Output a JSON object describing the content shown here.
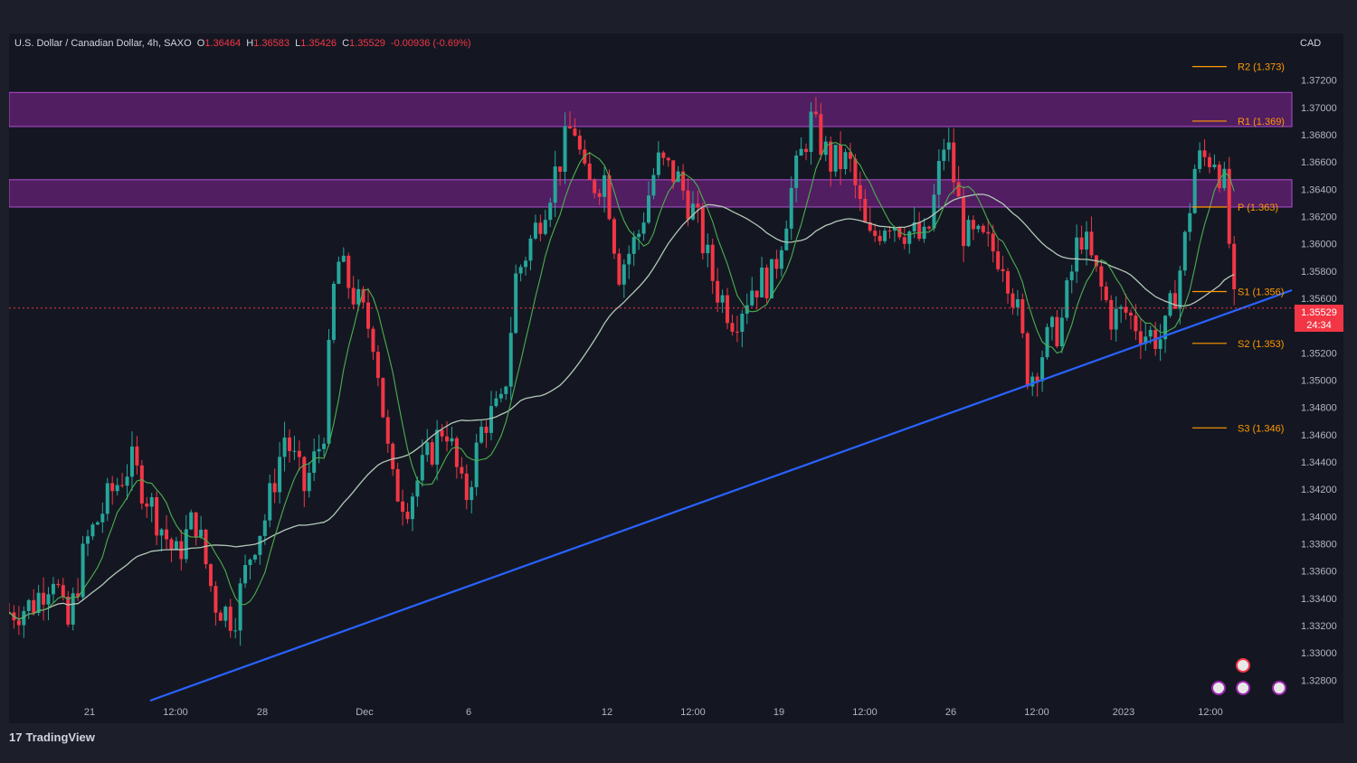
{
  "header": {
    "symbol": "U.S. Dollar / Canadian Dollar, 4h, SAXO",
    "open_label": "O",
    "open": "1.36464",
    "high_label": "H",
    "high": "1.36583",
    "low_label": "L",
    "low": "1.35426",
    "close_label": "C",
    "close": "1.35529",
    "change": "-0.00936 (-0.69%)"
  },
  "currency": "CAD",
  "last_price": {
    "value": "1.35529",
    "countdown": "24:34"
  },
  "brand": "TradingView",
  "chart_data": {
    "type": "candlestick",
    "ylim": [
      1.3265,
      1.3745
    ],
    "y_ticks": [
      "1.37200",
      "1.37000",
      "1.36800",
      "1.36600",
      "1.36400",
      "1.36200",
      "1.36000",
      "1.35800",
      "1.35600",
      "1.35400",
      "1.35200",
      "1.35000",
      "1.34800",
      "1.34600",
      "1.34400",
      "1.34200",
      "1.34000",
      "1.33800",
      "1.33600",
      "1.33400",
      "1.33200",
      "1.33000",
      "1.32800"
    ],
    "x_ticks": [
      "21",
      "12:00",
      "28",
      "Dec",
      "6",
      "12",
      "12:00",
      "19",
      "12:00",
      "26",
      "12:00",
      "2023",
      "12:00"
    ],
    "colors": {
      "up": "#26a69a",
      "down": "#f23645",
      "trend": "#2962ff",
      "ema_fast": "#4caf50",
      "ema_slow": "#b2c8b8",
      "zone": "#9c27b0",
      "pivot": "#ff9800"
    },
    "pivots": [
      {
        "label": "R2 (1.373)",
        "value": 1.373
      },
      {
        "label": "R1 (1.369)",
        "value": 1.369
      },
      {
        "label": "P (1.363)",
        "value": 1.3627
      },
      {
        "label": "S1 (1.356)",
        "value": 1.3565
      },
      {
        "label": "S2 (1.353)",
        "value": 1.3527
      },
      {
        "label": "S3 (1.346)",
        "value": 1.3465
      }
    ],
    "zones": [
      {
        "from": 1.3686,
        "to": 1.3711
      },
      {
        "from": 1.3627,
        "to": 1.3647
      }
    ],
    "trendline": {
      "start": [
        0.11,
        1.3265
      ],
      "end": [
        1.0,
        1.3566
      ]
    },
    "anchors": [
      [
        0.0,
        1.333
      ],
      [
        0.018,
        1.3335
      ],
      [
        0.035,
        1.336
      ],
      [
        0.045,
        1.3315
      ],
      [
        0.06,
        1.338
      ],
      [
        0.08,
        1.3418
      ],
      [
        0.095,
        1.344
      ],
      [
        0.115,
        1.34
      ],
      [
        0.13,
        1.337
      ],
      [
        0.145,
        1.34
      ],
      [
        0.16,
        1.3338
      ],
      [
        0.175,
        1.3325
      ],
      [
        0.19,
        1.338
      ],
      [
        0.2,
        1.34
      ],
      [
        0.215,
        1.346
      ],
      [
        0.23,
        1.342
      ],
      [
        0.245,
        1.346
      ],
      [
        0.255,
        1.359
      ],
      [
        0.265,
        1.357
      ],
      [
        0.285,
        1.353
      ],
      [
        0.298,
        1.3425
      ],
      [
        0.31,
        1.341
      ],
      [
        0.325,
        1.344
      ],
      [
        0.34,
        1.347
      ],
      [
        0.355,
        1.341
      ],
      [
        0.37,
        1.347
      ],
      [
        0.385,
        1.348
      ],
      [
        0.395,
        1.3575
      ],
      [
        0.41,
        1.361
      ],
      [
        0.425,
        1.365
      ],
      [
        0.44,
        1.369
      ],
      [
        0.45,
        1.364
      ],
      [
        0.465,
        1.365
      ],
      [
        0.475,
        1.358
      ],
      [
        0.49,
        1.3605
      ],
      [
        0.505,
        1.366
      ],
      [
        0.52,
        1.365
      ],
      [
        0.535,
        1.362
      ],
      [
        0.55,
        1.357
      ],
      [
        0.565,
        1.3545
      ],
      [
        0.58,
        1.357
      ],
      [
        0.595,
        1.3575
      ],
      [
        0.61,
        1.364
      ],
      [
        0.625,
        1.369
      ],
      [
        0.64,
        1.366
      ],
      [
        0.655,
        1.366
      ],
      [
        0.67,
        1.36
      ],
      [
        0.685,
        1.362
      ],
      [
        0.7,
        1.361
      ],
      [
        0.715,
        1.36
      ],
      [
        0.73,
        1.368
      ],
      [
        0.745,
        1.3605
      ],
      [
        0.76,
        1.36
      ],
      [
        0.775,
        1.359
      ],
      [
        0.785,
        1.3555
      ],
      [
        0.795,
        1.35
      ],
      [
        0.81,
        1.353
      ],
      [
        0.82,
        1.354
      ],
      [
        0.835,
        1.361
      ],
      [
        0.85,
        1.357
      ],
      [
        0.86,
        1.3545
      ],
      [
        0.87,
        1.355
      ],
      [
        0.885,
        1.3535
      ],
      [
        0.9,
        1.353
      ],
      [
        0.915,
        1.359
      ],
      [
        0.925,
        1.366
      ],
      [
        0.94,
        1.3665
      ],
      [
        0.948,
        1.364
      ],
      [
        0.955,
        1.3553
      ]
    ]
  }
}
